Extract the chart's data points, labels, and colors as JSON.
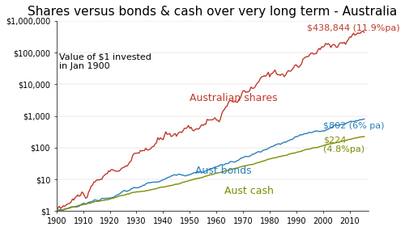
{
  "title": "Shares versus bonds & cash over very long term - Australia",
  "annotation": "Value of $1 invested\nin Jan 1900",
  "shares_label": "Australian shares",
  "bonds_label": "Aust bonds",
  "cash_label": "Aust cash",
  "shares_annotation": "$438,844 (11.9%pa)",
  "bonds_annotation": "$802 (6% pa)",
  "cash_annotation": "$224\n(4.8%pa)",
  "shares_color": "#c0392b",
  "bonds_color": "#2980b9",
  "cash_color": "#7f8c00",
  "title_fontsize": 11,
  "label_fontsize": 9,
  "annotation_fontsize": 8,
  "xlim": [
    1900,
    2017
  ],
  "ylim_log_min": 1,
  "ylim_log_max": 1000000,
  "xticks": [
    1900,
    1910,
    1920,
    1930,
    1940,
    1950,
    1960,
    1970,
    1980,
    1990,
    2000,
    2010
  ],
  "yticks": [
    1,
    10,
    100,
    1000,
    10000,
    100000,
    1000000
  ],
  "ytick_labels": [
    "$1",
    "$10",
    "$100",
    "$1,000",
    "$10,000",
    "$100,000",
    "$1,000,000"
  ],
  "background_color": "#ffffff"
}
